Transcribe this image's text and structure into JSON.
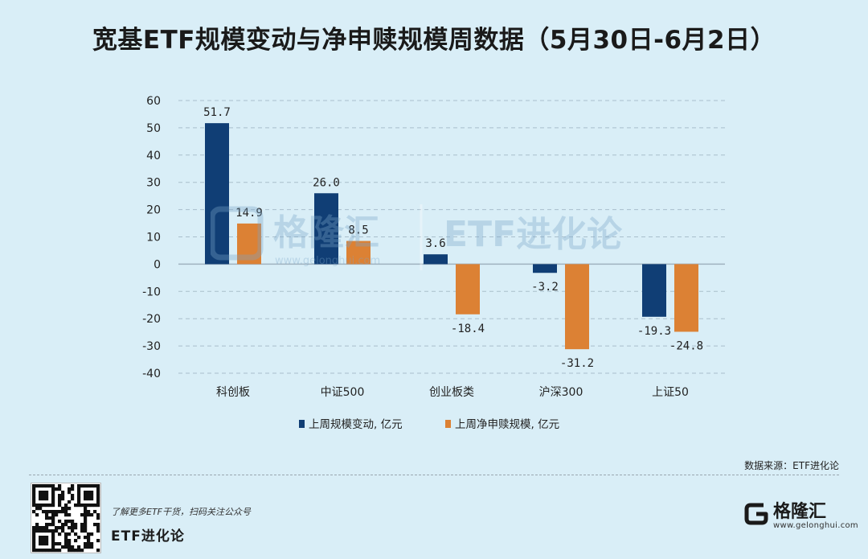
{
  "title": "宽基ETF规模变动与净申赎规模周数据（5月30日-6月2日）",
  "source_text": "数据来源：ETF进化论",
  "footer": {
    "tagline": "了解更多ETF干货，扫码关注公众号",
    "account_name": "ETF进化论"
  },
  "brand": {
    "name": "格隆汇",
    "url": "www.gelonghui.com"
  },
  "watermark": {
    "brand": "格隆汇",
    "url": "www.gelonghui.com",
    "text": "ETF进化论"
  },
  "colors": {
    "series1": "#103e75",
    "series2": "#dc8134",
    "background": "#d9eef7",
    "grid": "#a9bfcc"
  },
  "chart_data": {
    "type": "bar",
    "title": "",
    "xlabel": "",
    "ylabel": "",
    "categories": [
      "科创板",
      "中证500",
      "创业板类",
      "沪深300",
      "上证50"
    ],
    "series": [
      {
        "name": "上周规模变动, 亿元",
        "values": [
          51.7,
          26.0,
          3.6,
          -3.2,
          -19.3
        ],
        "labels": [
          "51.7",
          "26.0",
          "3.6",
          "-3.2",
          "-19.3"
        ]
      },
      {
        "name": "上周净申赎规模, 亿元",
        "values": [
          14.9,
          8.5,
          -18.4,
          -31.2,
          -24.8
        ],
        "labels": [
          "14.9",
          "8.5",
          "-18.4",
          "-31.2",
          "-24.8"
        ]
      }
    ],
    "ylim": [
      -40,
      60
    ],
    "yticks": [
      60,
      50,
      40,
      30,
      20,
      10,
      0,
      -10,
      -20,
      -30,
      -40
    ],
    "grid": true,
    "legend_position": "bottom"
  }
}
